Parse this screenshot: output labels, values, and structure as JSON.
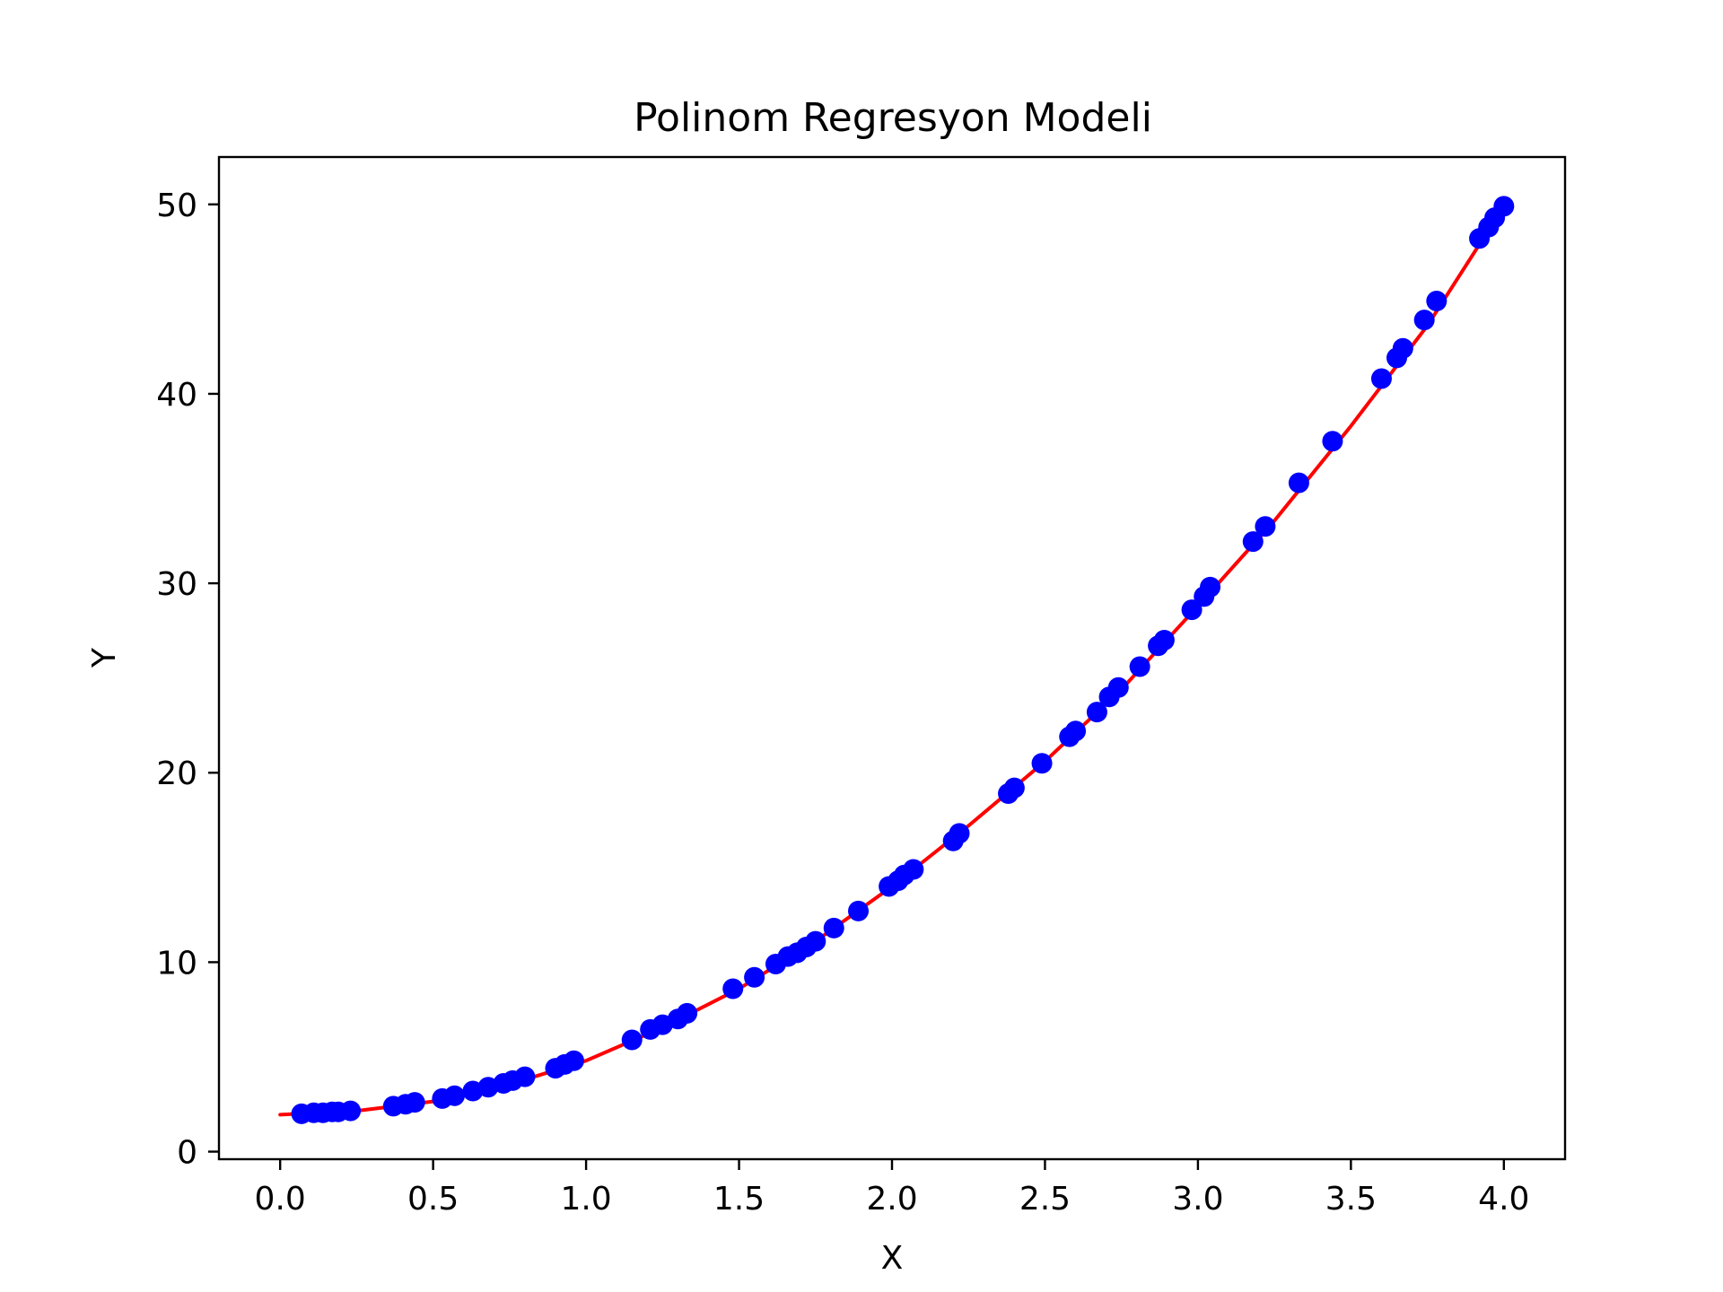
{
  "chart_data": {
    "type": "scatter",
    "title": "Polinom Regresyon Modeli",
    "xlabel": "X",
    "ylabel": "Y",
    "xlim": [
      -0.2,
      4.2
    ],
    "ylim": [
      -0.4,
      52.5
    ],
    "xticks": [
      0.0,
      0.5,
      1.0,
      1.5,
      2.0,
      2.5,
      3.0,
      3.5,
      4.0
    ],
    "xtick_labels": [
      "0.0",
      "0.5",
      "1.0",
      "1.5",
      "2.0",
      "2.5",
      "3.0",
      "3.5",
      "4.0"
    ],
    "yticks": [
      0,
      10,
      20,
      30,
      40,
      50
    ],
    "ytick_labels": [
      "0",
      "10",
      "20",
      "30",
      "40",
      "50"
    ],
    "grid": false,
    "colors": {
      "points": "#0000ff",
      "curve": "#ff0000",
      "axes": "#000000"
    },
    "series": [
      {
        "kind": "scatter",
        "x": [
          0.07,
          0.11,
          0.14,
          0.17,
          0.19,
          0.23,
          0.37,
          0.41,
          0.44,
          0.53,
          0.57,
          0.63,
          0.68,
          0.73,
          0.76,
          0.8,
          0.9,
          0.93,
          0.96,
          1.15,
          1.21,
          1.25,
          1.3,
          1.33,
          1.48,
          1.55,
          1.62,
          1.66,
          1.69,
          1.72,
          1.75,
          1.81,
          1.89,
          1.99,
          2.02,
          2.04,
          2.07,
          2.2,
          2.22,
          2.38,
          2.4,
          2.49,
          2.58,
          2.6,
          2.67,
          2.71,
          2.74,
          2.81,
          2.87,
          2.89,
          2.98,
          3.02,
          3.04,
          3.18,
          3.22,
          3.33,
          3.44,
          3.6,
          3.65,
          3.67,
          3.74,
          3.78,
          3.92,
          3.95,
          3.97,
          4.0
        ],
        "y": [
          2.0,
          2.05,
          2.05,
          2.1,
          2.1,
          2.15,
          2.4,
          2.5,
          2.6,
          2.8,
          2.95,
          3.2,
          3.4,
          3.6,
          3.75,
          3.95,
          4.4,
          4.6,
          4.8,
          5.9,
          6.45,
          6.7,
          7.0,
          7.3,
          8.6,
          9.2,
          9.9,
          10.3,
          10.5,
          10.8,
          11.1,
          11.8,
          12.7,
          14.0,
          14.3,
          14.6,
          14.9,
          16.4,
          16.8,
          18.9,
          19.2,
          20.5,
          21.9,
          22.2,
          23.2,
          24.0,
          24.5,
          25.6,
          26.7,
          27.0,
          28.6,
          29.3,
          29.8,
          32.2,
          33.0,
          35.3,
          37.5,
          40.8,
          41.9,
          42.4,
          43.9,
          44.9,
          48.2,
          48.8,
          49.3,
          49.9
        ]
      },
      {
        "kind": "line",
        "x": [
          0.0,
          0.25,
          0.5,
          0.75,
          1.0,
          1.25,
          1.5,
          1.75,
          2.0,
          2.25,
          2.5,
          2.75,
          3.0,
          3.25,
          3.5,
          3.75,
          4.0
        ],
        "y": [
          1.95,
          2.15,
          2.65,
          3.55,
          4.8,
          6.55,
          8.6,
          11.1,
          14.0,
          17.2,
          20.6,
          24.4,
          28.8,
          33.3,
          38.3,
          43.6,
          49.9
        ]
      }
    ]
  }
}
